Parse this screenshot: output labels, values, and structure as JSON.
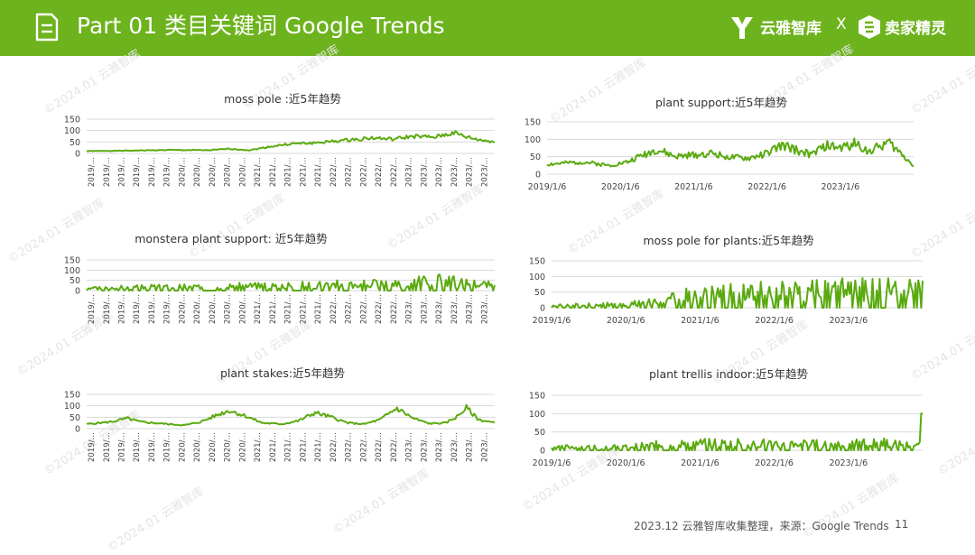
{
  "header": {
    "title": "Part 01 类目关键词 Google Trends",
    "brand_yunya": "云雅智库",
    "separator": "X",
    "brand_maijia": "卖家精灵",
    "bg_color": "#6db31d"
  },
  "footer": {
    "source": "2023.12 云雅智库收集整理，来源：Google Trends",
    "page": "11"
  },
  "watermark": "©2024.01 云雅智库",
  "series_color": "#5aaa0f",
  "chart_data": [
    {
      "type": "line",
      "title": "moss pole :近5年趋势",
      "yticks": [
        0,
        50,
        100,
        150
      ],
      "ylim": [
        0,
        150
      ],
      "x_start": "2019/1/6",
      "x_end": "2023/12/31",
      "x_tick_labels": [
        "2019/…",
        "2019/…",
        "2019/…",
        "2019/…",
        "2019/…",
        "2019/…",
        "2020/…",
        "2020/…",
        "2020/…",
        "2020/…",
        "2020/…",
        "2021/…",
        "2021/…",
        "2021/…",
        "2021/…",
        "2021/…",
        "2022/…",
        "2022/…",
        "2022/…",
        "2022/…",
        "2022/…",
        "2023/…",
        "2023/…",
        "2023/…",
        "2023/…",
        "2023/…",
        "2023/…"
      ],
      "tick_style": "rotated",
      "trend": [
        [
          0,
          10
        ],
        [
          0.1,
          12
        ],
        [
          0.2,
          15
        ],
        [
          0.3,
          14
        ],
        [
          0.35,
          20
        ],
        [
          0.4,
          14
        ],
        [
          0.45,
          30
        ],
        [
          0.5,
          42
        ],
        [
          0.55,
          45
        ],
        [
          0.6,
          52
        ],
        [
          0.65,
          60
        ],
        [
          0.7,
          68
        ],
        [
          0.75,
          62
        ],
        [
          0.8,
          75
        ],
        [
          0.85,
          70
        ],
        [
          0.9,
          90
        ],
        [
          0.93,
          72
        ],
        [
          0.96,
          60
        ],
        [
          1,
          50
        ]
      ],
      "noise": 0.12,
      "points": 260,
      "seed": 1
    },
    {
      "type": "line",
      "title": "plant support:近5年趋势",
      "yticks": [
        0,
        50,
        100,
        150
      ],
      "ylim": [
        0,
        150
      ],
      "x_start": "2019/1/6",
      "x_end": "2023/12/31",
      "x_tick_labels": [
        "2019/1/6",
        "2020/1/6",
        "2021/1/6",
        "2022/1/6",
        "2023/1/6"
      ],
      "tick_style": "flat",
      "trend": [
        [
          0,
          28
        ],
        [
          0.1,
          35
        ],
        [
          0.17,
          25
        ],
        [
          0.22,
          35
        ],
        [
          0.26,
          55
        ],
        [
          0.3,
          70
        ],
        [
          0.35,
          50
        ],
        [
          0.4,
          55
        ],
        [
          0.45,
          60
        ],
        [
          0.5,
          48
        ],
        [
          0.55,
          45
        ],
        [
          0.6,
          60
        ],
        [
          0.64,
          82
        ],
        [
          0.68,
          70
        ],
        [
          0.72,
          55
        ],
        [
          0.76,
          82
        ],
        [
          0.8,
          75
        ],
        [
          0.84,
          88
        ],
        [
          0.88,
          65
        ],
        [
          0.93,
          92
        ],
        [
          0.97,
          55
        ],
        [
          1,
          25
        ]
      ],
      "noise": 0.18,
      "points": 260,
      "seed": 2
    },
    {
      "type": "line",
      "title": "monstera plant support: 近5年趋势",
      "yticks": [
        0,
        50,
        100,
        150
      ],
      "ylim": [
        0,
        150
      ],
      "x_start": "2019/1/6",
      "x_end": "2023/12/31",
      "x_tick_labels": [
        "2019/…",
        "2019/…",
        "2019/…",
        "2019/…",
        "2019/…",
        "2019/…",
        "2020/…",
        "2020/…",
        "2020/…",
        "2020/…",
        "2020/…",
        "2021/…",
        "2021/…",
        "2021/…",
        "2021/…",
        "2021/…",
        "2022/…",
        "2022/…",
        "2022/…",
        "2022/…",
        "2022/…",
        "2023/…",
        "2023/…",
        "2023/…",
        "2023/…",
        "2023/…",
        "2023/…"
      ],
      "tick_style": "rotated",
      "trend": [
        [
          0,
          10
        ],
        [
          0.5,
          20
        ],
        [
          0.75,
          28
        ],
        [
          0.85,
          40
        ],
        [
          1,
          20
        ]
      ],
      "noise": 0.6,
      "spiky": true,
      "points": 260,
      "seed": 3
    },
    {
      "type": "line",
      "title": "moss pole for plants:近5年趋势",
      "yticks": [
        0,
        50,
        100,
        150
      ],
      "ylim": [
        0,
        150
      ],
      "x_start": "2019/1/6",
      "x_end": "2023/12/31",
      "x_tick_labels": [
        "2019/1/6",
        "2020/1/6",
        "2021/1/6",
        "2022/1/6",
        "2023/1/6"
      ],
      "tick_style": "flat",
      "trend": [
        [
          0,
          5
        ],
        [
          0.25,
          12
        ],
        [
          0.3,
          22
        ],
        [
          0.4,
          35
        ],
        [
          0.5,
          40
        ],
        [
          0.6,
          42
        ],
        [
          0.7,
          45
        ],
        [
          0.8,
          48
        ],
        [
          0.9,
          50
        ],
        [
          1,
          45
        ]
      ],
      "noise": 0.55,
      "spiky": true,
      "points": 260,
      "seed": 4
    },
    {
      "type": "line",
      "title": "plant stakes:近5年趋势",
      "yticks": [
        0,
        50,
        100,
        150
      ],
      "ylim": [
        0,
        150
      ],
      "x_start": "2019/1/6",
      "x_end": "2023/12/31",
      "x_tick_labels": [
        "2019/…",
        "2019/…",
        "2019/…",
        "2019/…",
        "2019/…",
        "2019/…",
        "2020/…",
        "2020/…",
        "2020/…",
        "2020/…",
        "2020/…",
        "2021/…",
        "2021/…",
        "2021/…",
        "2021/…",
        "2021/…",
        "2022/…",
        "2022/…",
        "2022/…",
        "2022/…",
        "2022/…",
        "2023/…",
        "2023/…",
        "2023/…",
        "2023/…",
        "2023/…",
        "2023/…"
      ],
      "tick_style": "rotated",
      "trend": [
        [
          0,
          20
        ],
        [
          0.06,
          30
        ],
        [
          0.1,
          45
        ],
        [
          0.13,
          30
        ],
        [
          0.2,
          20
        ],
        [
          0.24,
          15
        ],
        [
          0.28,
          30
        ],
        [
          0.32,
          60
        ],
        [
          0.35,
          80
        ],
        [
          0.39,
          55
        ],
        [
          0.43,
          25
        ],
        [
          0.48,
          20
        ],
        [
          0.52,
          35
        ],
        [
          0.56,
          70
        ],
        [
          0.6,
          50
        ],
        [
          0.64,
          25
        ],
        [
          0.68,
          20
        ],
        [
          0.72,
          40
        ],
        [
          0.76,
          90
        ],
        [
          0.8,
          45
        ],
        [
          0.84,
          22
        ],
        [
          0.88,
          25
        ],
        [
          0.91,
          55
        ],
        [
          0.93,
          92
        ],
        [
          0.96,
          40
        ],
        [
          1,
          25
        ]
      ],
      "noise": 0.15,
      "points": 260,
      "seed": 5
    },
    {
      "type": "line",
      "title": "plant trellis indoor:近5年趋势",
      "yticks": [
        0,
        50,
        100,
        150
      ],
      "ylim": [
        0,
        150
      ],
      "x_start": "2019/1/6",
      "x_end": "2023/12/31",
      "x_tick_labels": [
        "2019/1/6",
        "2020/1/6",
        "2021/1/6",
        "2022/1/6",
        "2023/1/6"
      ],
      "tick_style": "flat",
      "trend": [
        [
          0,
          8
        ],
        [
          0.2,
          8
        ],
        [
          0.3,
          15
        ],
        [
          0.5,
          18
        ],
        [
          0.7,
          15
        ],
        [
          0.9,
          18
        ],
        [
          0.99,
          10
        ],
        [
          1,
          100
        ]
      ],
      "noise": 0.5,
      "spiky": true,
      "points": 260,
      "seed": 6
    }
  ]
}
